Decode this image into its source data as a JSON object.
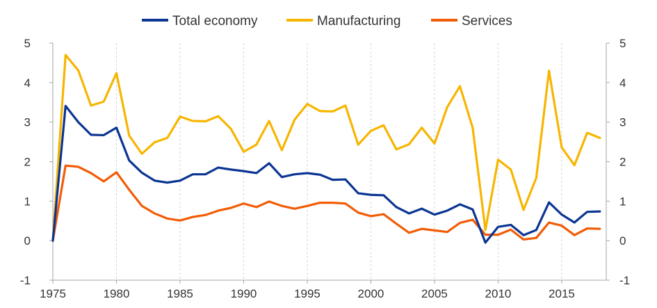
{
  "chart_data": {
    "type": "line",
    "title": "",
    "xlabel": "",
    "ylabel": "",
    "xlim": [
      1975,
      2018.5
    ],
    "ylim": [
      -1,
      5
    ],
    "yticks": [
      -1,
      0,
      1,
      2,
      3,
      4,
      5
    ],
    "xticks": [
      1975,
      1980,
      1985,
      1990,
      1995,
      2000,
      2005,
      2010,
      2015
    ],
    "grid": "vertical dashed",
    "legend_position": "top-center",
    "dual_y_axis": true,
    "x": [
      1975,
      1976,
      1977,
      1978,
      1979,
      1980,
      1981,
      1982,
      1983,
      1984,
      1985,
      1986,
      1987,
      1988,
      1989,
      1990,
      1991,
      1992,
      1993,
      1994,
      1995,
      1996,
      1997,
      1998,
      1999,
      2000,
      2001,
      2002,
      2003,
      2004,
      2005,
      2006,
      2007,
      2008,
      2009,
      2010,
      2011,
      2012,
      2013,
      2014,
      2015,
      2016,
      2017,
      2018
    ],
    "series": [
      {
        "name": "Total economy",
        "color": "#0b3592",
        "values": [
          0.0,
          3.41,
          3.0,
          2.68,
          2.67,
          2.86,
          2.03,
          1.72,
          1.52,
          1.47,
          1.52,
          1.68,
          1.68,
          1.85,
          1.8,
          1.76,
          1.71,
          1.96,
          1.61,
          1.68,
          1.71,
          1.67,
          1.54,
          1.55,
          1.2,
          1.16,
          1.15,
          0.85,
          0.69,
          0.81,
          0.66,
          0.76,
          0.92,
          0.79,
          -0.05,
          0.35,
          0.4,
          0.14,
          0.27,
          0.97,
          0.66,
          0.46,
          0.73,
          0.74
        ]
      },
      {
        "name": "Manufacturing",
        "color": "#f7b500",
        "values": [
          0.0,
          4.7,
          4.31,
          3.42,
          3.52,
          4.24,
          2.66,
          2.2,
          2.49,
          2.6,
          3.14,
          3.03,
          3.02,
          3.15,
          2.83,
          2.25,
          2.43,
          3.03,
          2.29,
          3.06,
          3.46,
          3.28,
          3.27,
          3.42,
          2.43,
          2.78,
          2.92,
          2.31,
          2.44,
          2.86,
          2.46,
          3.38,
          3.91,
          2.86,
          0.27,
          2.05,
          1.8,
          0.78,
          1.59,
          4.3,
          2.36,
          1.91,
          2.73,
          2.6
        ]
      },
      {
        "name": "Services",
        "color": "#f25c05",
        "values": [
          0.0,
          1.9,
          1.87,
          1.71,
          1.5,
          1.73,
          1.29,
          0.88,
          0.69,
          0.56,
          0.51,
          0.6,
          0.65,
          0.76,
          0.83,
          0.94,
          0.85,
          0.99,
          0.88,
          0.81,
          0.88,
          0.96,
          0.96,
          0.94,
          0.71,
          0.62,
          0.67,
          0.43,
          0.2,
          0.3,
          0.26,
          0.22,
          0.45,
          0.53,
          0.15,
          0.15,
          0.28,
          0.03,
          0.07,
          0.46,
          0.38,
          0.14,
          0.31,
          0.3
        ]
      }
    ]
  }
}
